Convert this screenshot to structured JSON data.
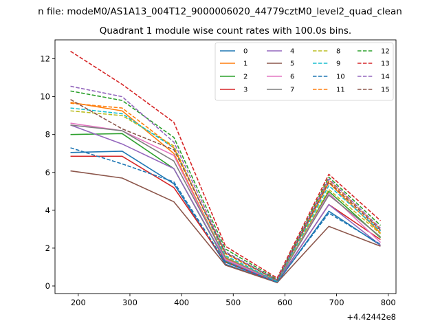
{
  "figure": {
    "suptitle": "n file: modeM0/AS1A13_004T12_9000006020_44779cztM0_level2_quad_clean"
  },
  "chart_data": {
    "type": "line",
    "title": "Quadrant 1 module wise count rates with 100.0s bins.",
    "xlabel": "",
    "ylabel": "",
    "x_offset_label": "+4.42442e8",
    "xlim": [
      155,
      815
    ],
    "ylim": [
      -0.4,
      13.0
    ],
    "xticks": [
      200,
      300,
      400,
      500,
      600,
      700,
      800
    ],
    "yticks": [
      0,
      2,
      4,
      6,
      8,
      10,
      12
    ],
    "x": [
      185,
      285,
      385,
      485,
      585,
      685,
      785
    ],
    "legend_position": "top-right",
    "series": [
      {
        "name": "0",
        "color": "#1f77b4",
        "dash": "solid",
        "values": [
          7.05,
          7.12,
          5.4,
          1.15,
          0.18,
          3.95,
          2.15
        ]
      },
      {
        "name": "1",
        "color": "#ff7f0e",
        "dash": "solid",
        "values": [
          9.7,
          9.25,
          7.0,
          1.45,
          0.25,
          5.45,
          2.8
        ]
      },
      {
        "name": "2",
        "color": "#2ca02c",
        "dash": "solid",
        "values": [
          8.0,
          8.05,
          6.2,
          1.3,
          0.22,
          5.0,
          2.55
        ]
      },
      {
        "name": "3",
        "color": "#d62728",
        "dash": "solid",
        "values": [
          6.85,
          6.85,
          5.2,
          1.25,
          0.2,
          4.3,
          2.45
        ]
      },
      {
        "name": "4",
        "color": "#9467bd",
        "dash": "solid",
        "values": [
          8.5,
          7.5,
          6.2,
          1.35,
          0.22,
          4.3,
          2.15
        ]
      },
      {
        "name": "5",
        "color": "#8c564b",
        "dash": "solid",
        "values": [
          6.08,
          5.7,
          4.45,
          1.1,
          0.18,
          3.15,
          2.1
        ]
      },
      {
        "name": "6",
        "color": "#e377c2",
        "dash": "solid",
        "values": [
          8.6,
          8.2,
          6.9,
          1.4,
          0.25,
          4.9,
          2.3
        ]
      },
      {
        "name": "7",
        "color": "#7f7f7f",
        "dash": "solid",
        "values": [
          8.5,
          8.2,
          6.6,
          1.5,
          0.24,
          4.8,
          2.6
        ]
      },
      {
        "name": "8",
        "color": "#bcbd22",
        "dash": "dashed",
        "values": [
          9.25,
          9.0,
          7.4,
          1.55,
          0.26,
          5.1,
          2.75
        ]
      },
      {
        "name": "9",
        "color": "#17becf",
        "dash": "dashed",
        "values": [
          9.4,
          9.1,
          7.3,
          1.6,
          0.25,
          5.3,
          2.9
        ]
      },
      {
        "name": "10",
        "color": "#1f77b4",
        "dash": "dashed",
        "values": [
          7.3,
          6.45,
          5.5,
          1.25,
          0.2,
          3.85,
          2.2
        ]
      },
      {
        "name": "11",
        "color": "#ff7f0e",
        "dash": "dashed",
        "values": [
          9.65,
          9.4,
          7.3,
          1.7,
          0.3,
          5.6,
          3.0
        ]
      },
      {
        "name": "12",
        "color": "#2ca02c",
        "dash": "dashed",
        "values": [
          10.3,
          9.8,
          7.85,
          1.95,
          0.35,
          5.75,
          3.2
        ]
      },
      {
        "name": "13",
        "color": "#d62728",
        "dash": "dashed",
        "values": [
          12.4,
          10.65,
          8.65,
          2.1,
          0.42,
          5.9,
          3.45
        ]
      },
      {
        "name": "14",
        "color": "#9467bd",
        "dash": "dashed",
        "values": [
          10.55,
          10.0,
          7.6,
          1.8,
          0.32,
          5.65,
          3.05
        ]
      },
      {
        "name": "15",
        "color": "#8c564b",
        "dash": "dashed",
        "values": [
          9.85,
          8.3,
          7.2,
          1.75,
          0.3,
          5.5,
          2.95
        ]
      }
    ]
  }
}
